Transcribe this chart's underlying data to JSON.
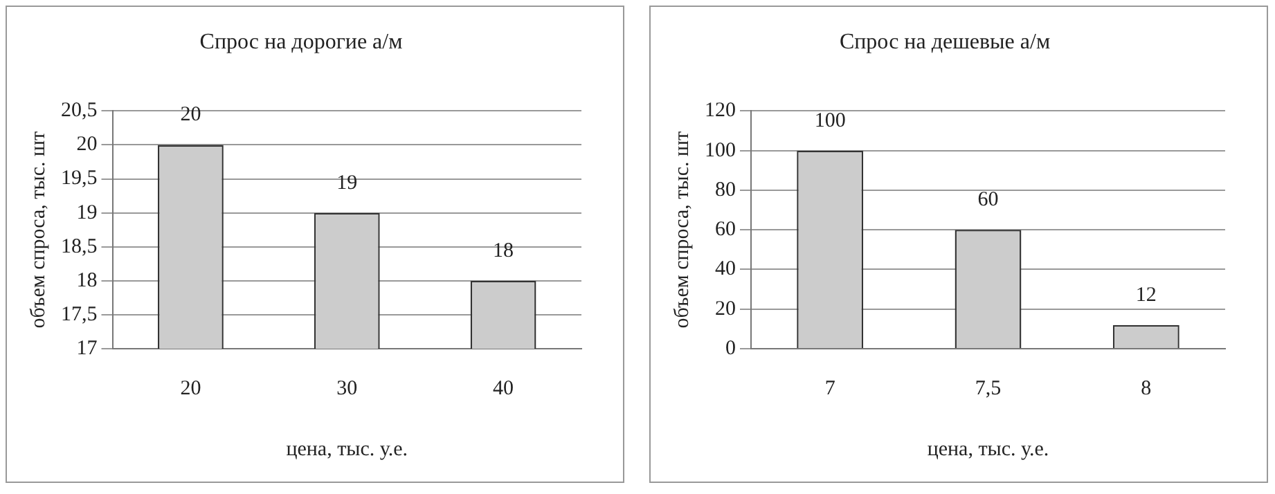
{
  "chart_data": [
    {
      "type": "bar",
      "title": "Спрос на дорогие а/м",
      "xlabel": "цена, тыс. у.е.",
      "ylabel": "объем спроса, тыс. шт",
      "categories": [
        "20",
        "30",
        "40"
      ],
      "values": [
        20,
        19,
        18
      ],
      "color": "#cccccc",
      "ylim": [
        17,
        20.5
      ],
      "yticks": [
        17,
        {
          "value": 17.5,
          "label": "17,5"
        },
        18,
        {
          "value": 18.5,
          "label": "18,5"
        },
        19,
        {
          "value": 19.5,
          "label": "19,5"
        },
        20,
        {
          "value": 20.5,
          "label": "20,5"
        }
      ],
      "grid": "y",
      "data_labels": true,
      "legend": false
    },
    {
      "type": "bar",
      "title": "Спрос на дешевые а/м",
      "xlabel": "цена, тыс. у.е.",
      "ylabel": "объем спроса, тыс. шт",
      "categories": [
        "7",
        "7,5",
        "8"
      ],
      "values": [
        100,
        60,
        12
      ],
      "color": "#cccccc",
      "ylim": [
        0,
        120
      ],
      "yticks": [
        0,
        20,
        40,
        60,
        80,
        100,
        120
      ],
      "grid": "y",
      "data_labels": true,
      "legend": false
    }
  ]
}
